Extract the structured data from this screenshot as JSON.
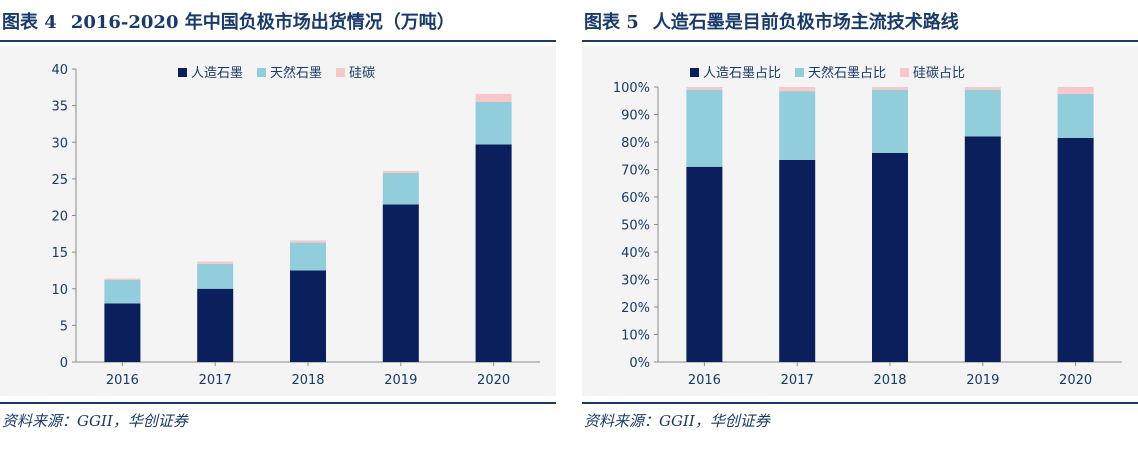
{
  "charts": [
    {
      "fig_no": "图表 4",
      "title": "2016-2020 年中国负极市场出货情况（万吨）",
      "source": "资料来源：GGII，华创证券"
    },
    {
      "fig_no": "图表 5",
      "title": "人造石墨是目前负极市场主流技术路线",
      "source": "资料来源：GGII，华创证券"
    }
  ],
  "colors": {
    "series1": "#0b1f5c",
    "series2": "#92cddc",
    "series3": "#f7c7c9",
    "accent": "#1a3a6b"
  },
  "chart_data": [
    {
      "type": "bar",
      "stacked": true,
      "categories": [
        "2016",
        "2017",
        "2018",
        "2019",
        "2020"
      ],
      "series": [
        {
          "name": "人造石墨",
          "values": [
            8.0,
            10.0,
            12.5,
            21.5,
            29.7
          ]
        },
        {
          "name": "天然石墨",
          "values": [
            3.2,
            3.4,
            3.8,
            4.3,
            5.8
          ]
        },
        {
          "name": "硅碳",
          "values": [
            0.2,
            0.3,
            0.3,
            0.3,
            1.1
          ]
        }
      ],
      "ylim": [
        0,
        40
      ],
      "yticks": [
        0,
        5,
        10,
        15,
        20,
        25,
        30,
        35,
        40
      ],
      "ytick_labels": [
        "0",
        "5",
        "10",
        "15",
        "20",
        "25",
        "30",
        "35",
        "40"
      ],
      "legend_position": "top",
      "grid": false
    },
    {
      "type": "bar",
      "stacked": true,
      "categories": [
        "2016",
        "2017",
        "2018",
        "2019",
        "2020"
      ],
      "series": [
        {
          "name": "人造石墨占比",
          "values": [
            71,
            73.5,
            76,
            82,
            81.5
          ]
        },
        {
          "name": "天然石墨占比",
          "values": [
            28,
            25,
            23,
            17,
            16
          ]
        },
        {
          "name": "硅碳占比",
          "values": [
            1,
            1.5,
            1,
            1,
            2.5
          ]
        }
      ],
      "ylim": [
        0,
        100
      ],
      "yticks": [
        0,
        10,
        20,
        30,
        40,
        50,
        60,
        70,
        80,
        90,
        100
      ],
      "ytick_labels": [
        "0%",
        "10%",
        "20%",
        "30%",
        "40%",
        "50%",
        "60%",
        "70%",
        "80%",
        "90%",
        "100%"
      ],
      "legend_position": "top",
      "grid": false
    }
  ]
}
